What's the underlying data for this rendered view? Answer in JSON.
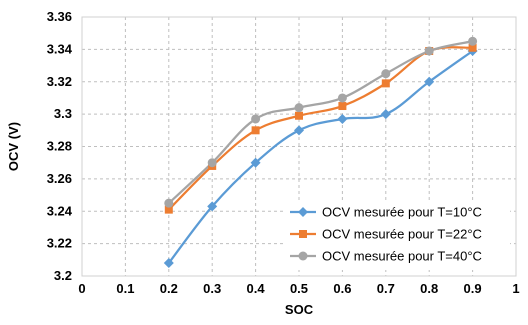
{
  "chart_data": {
    "type": "line",
    "title": "",
    "xlabel": "SOC",
    "ylabel": "OCV (V)",
    "xlim": [
      0,
      1
    ],
    "ylim": [
      3.2,
      3.36
    ],
    "x_ticks": [
      0,
      0.1,
      0.2,
      0.3,
      0.4,
      0.5,
      0.6,
      0.7,
      0.8,
      0.9,
      1
    ],
    "x_tick_labels": [
      "0",
      "0.1",
      "0.2",
      "0.3",
      "0.4",
      "0.5",
      "0.6",
      "0.7",
      "0.8",
      "0.9",
      "1"
    ],
    "y_ticks": [
      3.2,
      3.22,
      3.24,
      3.26,
      3.28,
      3.3,
      3.32,
      3.34,
      3.36
    ],
    "y_tick_labels": [
      "3.2",
      "3.22",
      "3.24",
      "3.26",
      "3.28",
      "3.3",
      "3.32",
      "3.34",
      "3.36"
    ],
    "grid": true,
    "grid_style": "dashed",
    "legend_position": "bottom-right",
    "x": [
      0.2,
      0.3,
      0.4,
      0.5,
      0.6,
      0.7,
      0.8,
      0.9
    ],
    "series": [
      {
        "name": "OCV mesurée pour T=10°C",
        "color": "#5b9bd5",
        "marker": "diamond",
        "values": [
          3.208,
          3.243,
          3.27,
          3.29,
          3.297,
          3.3,
          3.32,
          3.339
        ]
      },
      {
        "name": "OCV mesurée pour T=22°C",
        "color": "#ed7d31",
        "marker": "square",
        "values": [
          3.241,
          3.268,
          3.29,
          3.299,
          3.305,
          3.319,
          3.339,
          3.341
        ]
      },
      {
        "name": "OCV mesurée pour T=40°C",
        "color": "#a5a5a5",
        "marker": "circle",
        "values": [
          3.245,
          3.27,
          3.297,
          3.304,
          3.31,
          3.325,
          3.339,
          3.345
        ]
      }
    ]
  }
}
